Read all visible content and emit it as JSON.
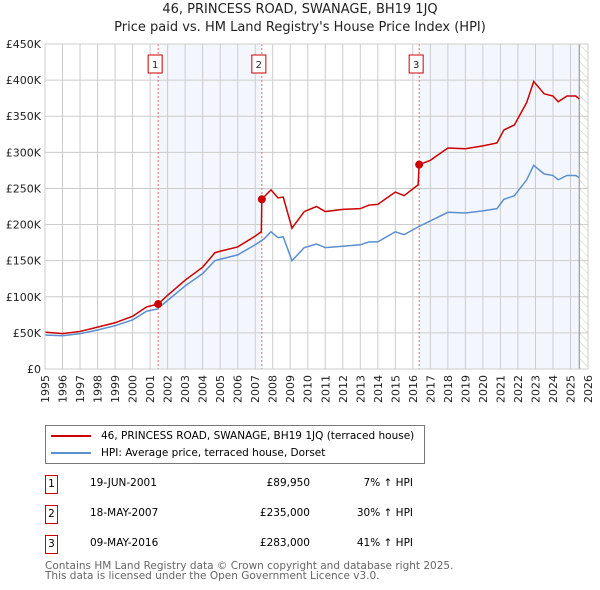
{
  "chart_data": {
    "type": "line",
    "title": "46, PRINCESS ROAD, SWANAGE, BH19 1JQ",
    "subtitle": "Price paid vs. HM Land Registry's House Price Index (HPI)",
    "xlim": [
      1995,
      2026
    ],
    "ylim": [
      0,
      450000
    ],
    "x_ticks": [
      "1995",
      "1996",
      "1997",
      "1998",
      "1999",
      "2000",
      "2001",
      "2002",
      "2003",
      "2004",
      "2005",
      "2006",
      "2007",
      "2008",
      "2009",
      "2010",
      "2011",
      "2012",
      "2013",
      "2014",
      "2015",
      "2016",
      "2017",
      "2018",
      "2019",
      "2020",
      "2021",
      "2022",
      "2023",
      "2024",
      "2025",
      "2026"
    ],
    "y_ticks": [
      {
        "v": 0,
        "label": "£0"
      },
      {
        "v": 50000,
        "label": "£50K"
      },
      {
        "v": 100000,
        "label": "£100K"
      },
      {
        "v": 150000,
        "label": "£150K"
      },
      {
        "v": 200000,
        "label": "£200K"
      },
      {
        "v": 250000,
        "label": "£250K"
      },
      {
        "v": 300000,
        "label": "£300K"
      },
      {
        "v": 350000,
        "label": "£350K"
      },
      {
        "v": 400000,
        "label": "£400K"
      },
      {
        "v": 450000,
        "label": "£450K"
      }
    ],
    "grid": true,
    "series": [
      {
        "name": "46, PRINCESS ROAD, SWANAGE, BH19 1JQ (terraced house)",
        "color": "#cc0000",
        "x": [
          1995,
          1996,
          1997,
          1998,
          1999,
          2000,
          2000.8,
          2001.46,
          2002,
          2003,
          2004,
          2004.7,
          2005,
          2006,
          2007,
          2007.35,
          2007.38,
          2007.9,
          2008.3,
          2008.6,
          2009.1,
          2009.8,
          2010.5,
          2011,
          2012,
          2013,
          2013.5,
          2014,
          2015,
          2015.5,
          2016.3,
          2016.36,
          2017,
          2018,
          2019,
          2020,
          2020.8,
          2021.2,
          2021.8,
          2022.5,
          2022.9,
          2023.5,
          2024,
          2024.3,
          2024.8,
          2025.3,
          2025.5
        ],
        "y": [
          51000,
          49000,
          52000,
          58000,
          64000,
          73000,
          86000,
          89950,
          102000,
          123000,
          141000,
          161000,
          163000,
          169000,
          184000,
          190000,
          235000,
          248000,
          237000,
          238000,
          195000,
          218000,
          225000,
          218000,
          221000,
          222000,
          227000,
          228000,
          245000,
          240000,
          255000,
          283000,
          289000,
          306000,
          305000,
          309000,
          313000,
          331000,
          338000,
          369000,
          398000,
          381000,
          378000,
          370000,
          378000,
          378000,
          374000
        ]
      },
      {
        "name": "HPI: Average price, terraced house, Dorset",
        "color": "#5b8fd0",
        "x": [
          1995,
          1996,
          1997,
          1998,
          1999,
          2000,
          2000.8,
          2001.4,
          2002,
          2003,
          2004,
          2004.7,
          2005,
          2006,
          2007,
          2007.5,
          2007.9,
          2008.3,
          2008.6,
          2009.1,
          2009.8,
          2010.5,
          2011,
          2012,
          2013,
          2013.5,
          2014,
          2015,
          2015.5,
          2016.4,
          2017,
          2018,
          2019,
          2020,
          2020.8,
          2021.2,
          2021.8,
          2022.5,
          2022.9,
          2023.5,
          2024,
          2024.3,
          2024.8,
          2025.3,
          2025.5
        ],
        "y": [
          47000,
          46000,
          49000,
          54000,
          60000,
          68000,
          80000,
          83000,
          95000,
          115000,
          132000,
          150000,
          152000,
          158000,
          172000,
          180000,
          190000,
          182000,
          183000,
          150000,
          168000,
          173000,
          168000,
          170000,
          172000,
          176000,
          176000,
          190000,
          186000,
          198000,
          205000,
          217000,
          216000,
          219000,
          222000,
          235000,
          240000,
          262000,
          282000,
          270000,
          268000,
          262000,
          268000,
          268000,
          265000
        ]
      }
    ],
    "sales": [
      {
        "id": "1",
        "x": 2001.46,
        "date": "19-JUN-2001",
        "price": 89950,
        "price_label": "£89,950",
        "hpi": "7% ↑ HPI"
      },
      {
        "id": "2",
        "x": 2007.38,
        "date": "18-MAY-2007",
        "price": 235000,
        "price_label": "£235,000",
        "hpi": "30% ↑ HPI"
      },
      {
        "id": "3",
        "x": 2016.36,
        "date": "09-MAY-2016",
        "price": 283000,
        "price_label": "£283,000",
        "hpi": "41% ↑ HPI"
      }
    ],
    "forecast_from": 2025.5,
    "legend": "below"
  },
  "footer": {
    "line1": "Contains HM Land Registry data © Crown copyright and database right 2025.",
    "line2": "This data is licensed under the Open Government Licence v3.0."
  }
}
